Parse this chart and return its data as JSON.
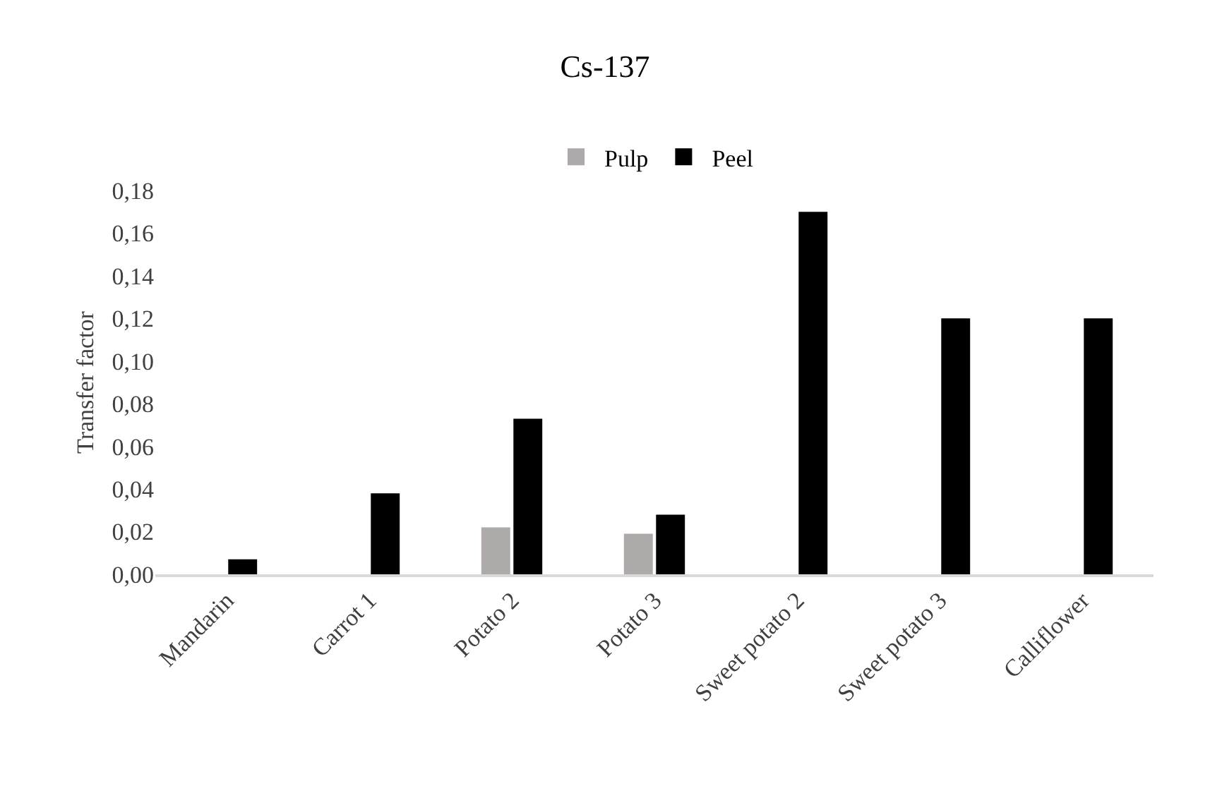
{
  "chart_data": {
    "type": "bar",
    "title": "Cs-137",
    "ylabel": "Transfer factor",
    "categories": [
      "Mandarin",
      "Carrot 1",
      "Potato 2",
      "Potato 3",
      "Sweet potato 2",
      "Sweet potato 3",
      "Calliflower"
    ],
    "series": [
      {
        "name": "Pulp",
        "color": "#aeaaaa",
        "values": [
          null,
          null,
          0.022,
          0.019,
          null,
          null,
          null
        ]
      },
      {
        "name": "Peel",
        "color": "#000000",
        "values": [
          0.007,
          0.038,
          0.073,
          0.028,
          0.17,
          0.12,
          0.12
        ]
      }
    ],
    "ylim": [
      0,
      0.18
    ],
    "yticks": [
      {
        "value": 0,
        "label": "0,00"
      },
      {
        "value": 0.02,
        "label": "0,02"
      },
      {
        "value": 0.04,
        "label": "0,04"
      },
      {
        "value": 0.06,
        "label": "0,06"
      },
      {
        "value": 0.08,
        "label": "0,08"
      },
      {
        "value": 0.1,
        "label": "0,10"
      },
      {
        "value": 0.12,
        "label": "0,12"
      },
      {
        "value": 0.14,
        "label": "0,14"
      },
      {
        "value": 0.16,
        "label": "0,16"
      },
      {
        "value": 0.18,
        "label": "0,18"
      }
    ],
    "grid": false,
    "legend": "top"
  }
}
